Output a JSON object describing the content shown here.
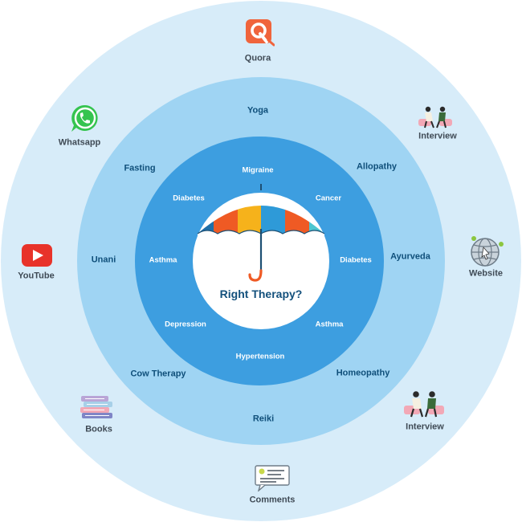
{
  "center": {
    "title": "Right Therapy?"
  },
  "outer_ring": {
    "quora": "Quora",
    "interview_top": "Interview",
    "website": "Website",
    "interview_bottom": "Interview",
    "comments": "Comments",
    "books": "Books",
    "youtube": "YouTube",
    "whatsapp": "Whatsapp"
  },
  "middle_ring": {
    "yoga": "Yoga",
    "allopathy": "Allopathy",
    "ayurveda": "Ayurveda",
    "homeopathy": "Homeopathy",
    "reiki": "Reiki",
    "cow_therapy": "Cow Therapy",
    "unani": "Unani",
    "fasting": "Fasting"
  },
  "inner_ring": {
    "migraine": "Migraine",
    "cancer": "Cancer",
    "diabetes_right": "Diabetes",
    "asthma_right": "Asthma",
    "hypertension": "Hypertension",
    "depression": "Depression",
    "asthma_left": "Asthma",
    "diabetes_left": "Diabetes"
  },
  "colors": {
    "outer_ring": "#d7ecf9",
    "middle_ring": "#9fd4f3",
    "inner_ring": "#3d9ee0",
    "umbrella": [
      "#1f6fa8",
      "#ef5a24",
      "#f6b21b",
      "#2e9ad8",
      "#4cc6d0"
    ],
    "handle": "#ef5a24",
    "quora": "#f0643c",
    "youtube": "#e8332a",
    "whatsapp": "#35c44f"
  },
  "icons": {
    "quora": "quora-logo-icon",
    "interview": "interview-people-icon",
    "website": "globe-icon",
    "comments": "comment-card-icon",
    "books": "books-stack-icon",
    "youtube": "youtube-logo-icon",
    "whatsapp": "whatsapp-logo-icon",
    "center": "umbrella-icon"
  }
}
